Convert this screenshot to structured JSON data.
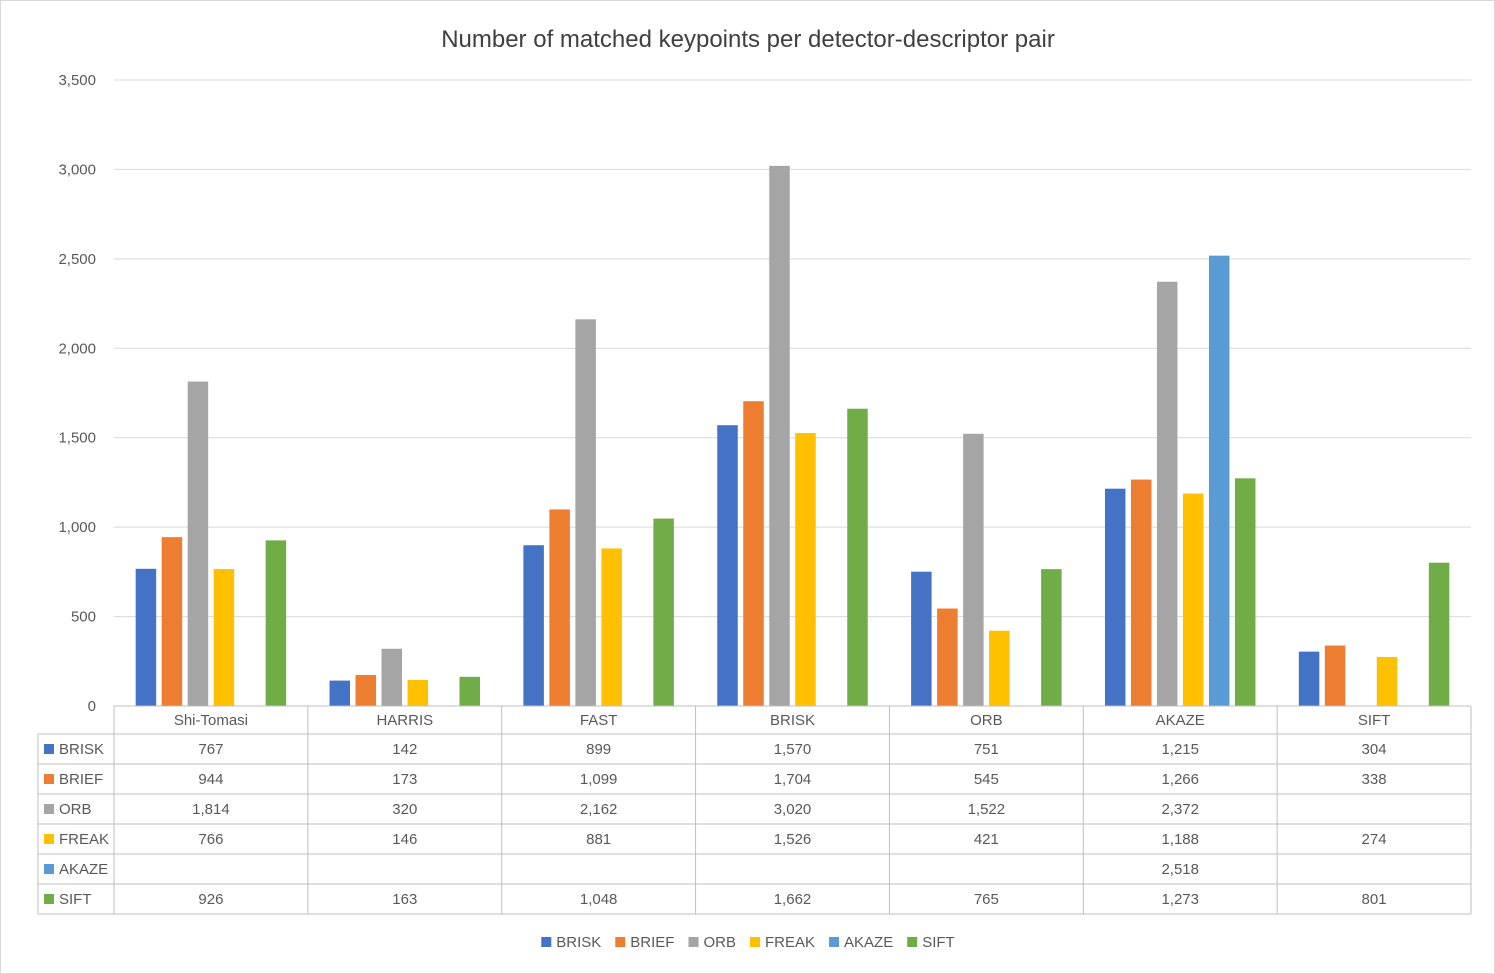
{
  "chart_data": {
    "type": "bar",
    "title": "Number of matched keypoints per detector-descriptor pair",
    "xlabel": "",
    "ylabel": "",
    "ylim": [
      0,
      3500
    ],
    "y_ticks": [
      0,
      500,
      1000,
      1500,
      2000,
      2500,
      3000,
      3500
    ],
    "y_tick_labels": [
      "0",
      "500",
      "1,000",
      "1,500",
      "2,000",
      "2,500",
      "3,000",
      "3,500"
    ],
    "grid": true,
    "legend_position": "bottom",
    "data_table": true,
    "categories": [
      "Shi-Tomasi",
      "HARRIS",
      "FAST",
      "BRISK",
      "ORB",
      "AKAZE",
      "SIFT"
    ],
    "series": [
      {
        "name": "BRISK",
        "color": "#4472C4",
        "values": [
          767,
          142,
          899,
          1570,
          751,
          1215,
          304
        ],
        "labels": [
          "767",
          "142",
          "899",
          "1,570",
          "751",
          "1,215",
          "304"
        ]
      },
      {
        "name": "BRIEF",
        "color": "#ED7D31",
        "values": [
          944,
          173,
          1099,
          1704,
          545,
          1266,
          338
        ],
        "labels": [
          "944",
          "173",
          "1,099",
          "1,704",
          "545",
          "1,266",
          "338"
        ]
      },
      {
        "name": "ORB",
        "color": "#A5A5A5",
        "values": [
          1814,
          320,
          2162,
          3020,
          1522,
          2372,
          null
        ],
        "labels": [
          "1,814",
          "320",
          "2,162",
          "3,020",
          "1,522",
          "2,372",
          ""
        ]
      },
      {
        "name": "FREAK",
        "color": "#FFC000",
        "values": [
          766,
          146,
          881,
          1526,
          421,
          1188,
          274
        ],
        "labels": [
          "766",
          "146",
          "881",
          "1,526",
          "421",
          "1,188",
          "274"
        ]
      },
      {
        "name": "AKAZE",
        "color": "#5B9BD5",
        "values": [
          null,
          null,
          null,
          null,
          null,
          2518,
          null
        ],
        "labels": [
          "",
          "",
          "",
          "",
          "",
          "2,518",
          ""
        ]
      },
      {
        "name": "SIFT",
        "color": "#70AD47",
        "values": [
          926,
          163,
          1048,
          1662,
          765,
          1273,
          801
        ],
        "labels": [
          "926",
          "163",
          "1,048",
          "1,662",
          "765",
          "1,273",
          "801"
        ]
      }
    ]
  }
}
